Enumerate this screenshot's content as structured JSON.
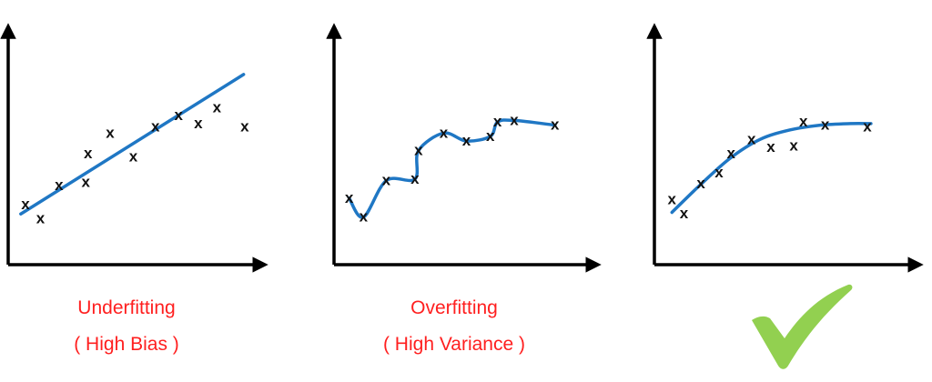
{
  "colors": {
    "axis": "#000000",
    "curve": "#1f77c4",
    "marker": "#111111",
    "caption": "#ff1f1f",
    "check": "#92d050"
  },
  "marker_symbol": "x",
  "panels": [
    {
      "caption_line1": "Underfitting",
      "caption_line2": "( High Bias )",
      "fit": "linear",
      "show_check": false,
      "points": [
        [
          0.7,
          3.8
        ],
        [
          2.0,
          2.9
        ],
        [
          3.6,
          5.0
        ],
        [
          5.9,
          5.2
        ],
        [
          6.1,
          7.0
        ],
        [
          8.0,
          8.3
        ],
        [
          10.0,
          6.8
        ],
        [
          11.9,
          8.7
        ],
        [
          13.9,
          9.4
        ],
        [
          15.6,
          8.9
        ],
        [
          17.2,
          9.9
        ],
        [
          19.6,
          8.7
        ]
      ],
      "curve": [
        [
          0.3,
          3.2
        ],
        [
          19.5,
          12.0
        ]
      ]
    },
    {
      "caption_line1": "Overfitting",
      "caption_line2": "( High Variance )",
      "fit": "interpolating",
      "show_check": false,
      "points": [
        [
          0.5,
          4.2
        ],
        [
          1.7,
          3.0
        ],
        [
          3.6,
          5.3
        ],
        [
          6.0,
          5.4
        ],
        [
          6.3,
          7.2
        ],
        [
          8.4,
          8.3
        ],
        [
          10.3,
          7.8
        ],
        [
          12.3,
          8.1
        ],
        [
          12.9,
          9.0
        ],
        [
          14.3,
          9.1
        ],
        [
          17.7,
          8.8
        ]
      ],
      "curve": [
        [
          0.5,
          4.2
        ],
        [
          1.7,
          3.0
        ],
        [
          3.6,
          5.3
        ],
        [
          6.0,
          5.4
        ],
        [
          6.3,
          7.2
        ],
        [
          8.4,
          8.3
        ],
        [
          10.3,
          7.8
        ],
        [
          12.3,
          8.1
        ],
        [
          12.9,
          9.0
        ],
        [
          14.3,
          9.1
        ],
        [
          17.7,
          8.8
        ]
      ]
    },
    {
      "caption_line1": "",
      "caption_line2": "",
      "fit": "smooth",
      "show_check": true,
      "points": [
        [
          0.7,
          4.1
        ],
        [
          1.7,
          3.2
        ],
        [
          3.1,
          5.1
        ],
        [
          4.6,
          5.8
        ],
        [
          5.6,
          7.0
        ],
        [
          7.3,
          7.9
        ],
        [
          8.9,
          7.4
        ],
        [
          10.8,
          7.5
        ],
        [
          11.6,
          9.0
        ],
        [
          13.4,
          8.8
        ],
        [
          16.9,
          8.7
        ]
      ],
      "curve": [
        [
          0.7,
          3.3
        ],
        [
          3.0,
          5.0
        ],
        [
          5.5,
          6.7
        ],
        [
          8.0,
          7.9
        ],
        [
          10.5,
          8.5
        ],
        [
          13.0,
          8.8
        ],
        [
          15.5,
          8.9
        ],
        [
          17.2,
          8.9
        ]
      ]
    }
  ],
  "axes": {
    "xlim": [
      0,
      20
    ],
    "ylim": [
      0,
      14
    ]
  }
}
